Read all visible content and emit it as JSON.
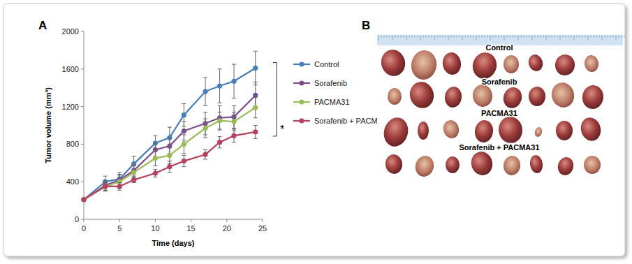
{
  "chart_data": {
    "type": "line",
    "x_label": "Time (days)",
    "y_label": "Tumor volume (mm³)",
    "x": [
      0,
      3,
      5,
      7,
      10,
      12,
      14,
      17,
      19,
      21,
      24
    ],
    "series": [
      {
        "name": "Control",
        "color": "#4a7ebb",
        "marker": "circle",
        "values": [
          210,
          400,
          430,
          590,
          810,
          870,
          1110,
          1360,
          1420,
          1470,
          1610
        ],
        "errors": [
          0,
          60,
          70,
          80,
          80,
          110,
          120,
          150,
          180,
          180,
          180
        ]
      },
      {
        "name": "Sorafenib",
        "color": "#7b4f8e",
        "marker": "circle",
        "values": [
          210,
          360,
          420,
          520,
          740,
          780,
          940,
          1020,
          1080,
          1090,
          1320
        ],
        "errors": [
          0,
          50,
          60,
          60,
          70,
          80,
          100,
          120,
          130,
          120,
          140
        ]
      },
      {
        "name": "PACMA31",
        "color": "#9bbb59",
        "marker": "circle",
        "values": [
          210,
          350,
          400,
          500,
          650,
          680,
          800,
          970,
          1050,
          1040,
          1190
        ],
        "errors": [
          0,
          50,
          70,
          70,
          80,
          90,
          100,
          100,
          90,
          100,
          110
        ]
      },
      {
        "name": "Sorafenib + PACMA31",
        "color": "#b5415f",
        "marker": "circle",
        "values": [
          210,
          350,
          350,
          420,
          490,
          560,
          620,
          690,
          820,
          890,
          930
        ],
        "errors": [
          0,
          40,
          40,
          30,
          40,
          60,
          60,
          50,
          60,
          70,
          70
        ]
      }
    ],
    "xlim": [
      0,
      25
    ],
    "xticks": [
      0,
      5,
      10,
      15,
      20,
      25
    ],
    "ylim": [
      0,
      2000
    ],
    "yticks": [
      0,
      400,
      800,
      1200,
      1600,
      2000
    ],
    "grid": false,
    "legend": "right",
    "annotation": "*"
  },
  "panel_labels": [
    "A",
    "B"
  ],
  "photo": {
    "row_labels": [
      "Control",
      "Sorafenib",
      "PACMA31",
      "Sorafenib + PACMA31"
    ]
  }
}
